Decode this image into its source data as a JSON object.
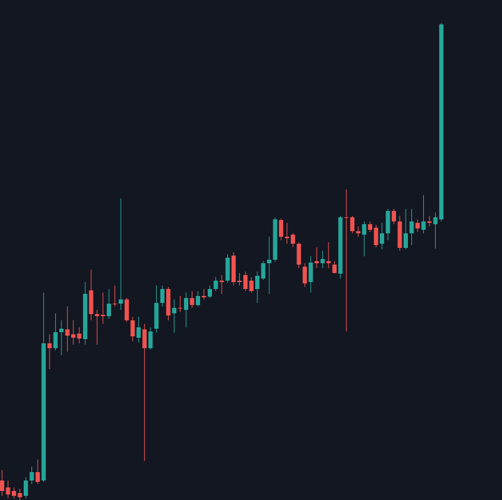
{
  "chart_data": {
    "type": "candlestick",
    "up_color": "#26a69a",
    "down_color": "#ef5350",
    "background": "#131722",
    "ylim": [
      0,
      718
    ],
    "open": [
      28,
      18,
      13,
      10,
      6,
      28,
      40,
      28,
      225,
      218,
      241,
      245,
      238,
      239,
      231,
      301,
      267,
      266,
      264,
      282,
      282,
      288,
      258,
      233,
      245,
      218,
      246,
      283,
      303,
      268,
      276,
      273,
      290,
      280,
      293,
      292,
      303,
      315,
      315,
      351,
      315,
      323,
      315,
      303,
      318,
      340,
      345,
      402,
      378,
      381,
      368,
      335,
      313,
      343,
      340,
      343,
      338,
      325,
      406,
      406,
      386,
      381,
      396,
      391,
      368,
      383,
      415,
      400,
      362,
      383,
      398,
      388,
      400,
      396,
      403
    ],
    "close": [
      13,
      8,
      6,
      4,
      28,
      40,
      26,
      225,
      218,
      241,
      246,
      236,
      233,
      232,
      296,
      267,
      264,
      264,
      282,
      281,
      288,
      258,
      235,
      248,
      218,
      242,
      283,
      303,
      265,
      276,
      275,
      290,
      280,
      293,
      291,
      303,
      315,
      313,
      348,
      313,
      313,
      303,
      300,
      322,
      340,
      345,
      403,
      378,
      376,
      368,
      338,
      311,
      341,
      340,
      346,
      340,
      326,
      406,
      405,
      386,
      383,
      396,
      388,
      366,
      383,
      415,
      400,
      362,
      383,
      400,
      390,
      400,
      398,
      406,
      683
    ],
    "high": [
      43,
      28,
      18,
      16,
      33,
      48,
      58,
      298,
      238,
      268,
      258,
      278,
      258,
      248,
      313,
      331,
      273,
      298,
      303,
      308,
      433,
      290,
      263,
      263,
      253,
      248,
      308,
      308,
      306,
      288,
      293,
      298,
      300,
      300,
      303,
      308,
      320,
      323,
      353,
      356,
      326,
      328,
      320,
      328,
      343,
      378,
      406,
      404,
      398,
      383,
      370,
      340,
      350,
      363,
      358,
      370,
      343,
      408,
      446,
      408,
      393,
      400,
      400,
      395,
      398,
      418,
      418,
      408,
      418,
      418,
      403,
      438,
      408,
      413,
      685
    ],
    "low": [
      6,
      3,
      2,
      0,
      2,
      23,
      23,
      26,
      188,
      215,
      208,
      213,
      223,
      225,
      223,
      258,
      223,
      253,
      260,
      278,
      273,
      256,
      228,
      226,
      56,
      216,
      240,
      278,
      258,
      240,
      270,
      248,
      276,
      278,
      288,
      290,
      300,
      296,
      312,
      308,
      308,
      300,
      298,
      283,
      316,
      296,
      342,
      373,
      368,
      363,
      333,
      306,
      298,
      333,
      333,
      333,
      325,
      318,
      242,
      383,
      378,
      350,
      385,
      363,
      360,
      373,
      396,
      358,
      360,
      366,
      385,
      383,
      393,
      361,
      400
    ]
  }
}
